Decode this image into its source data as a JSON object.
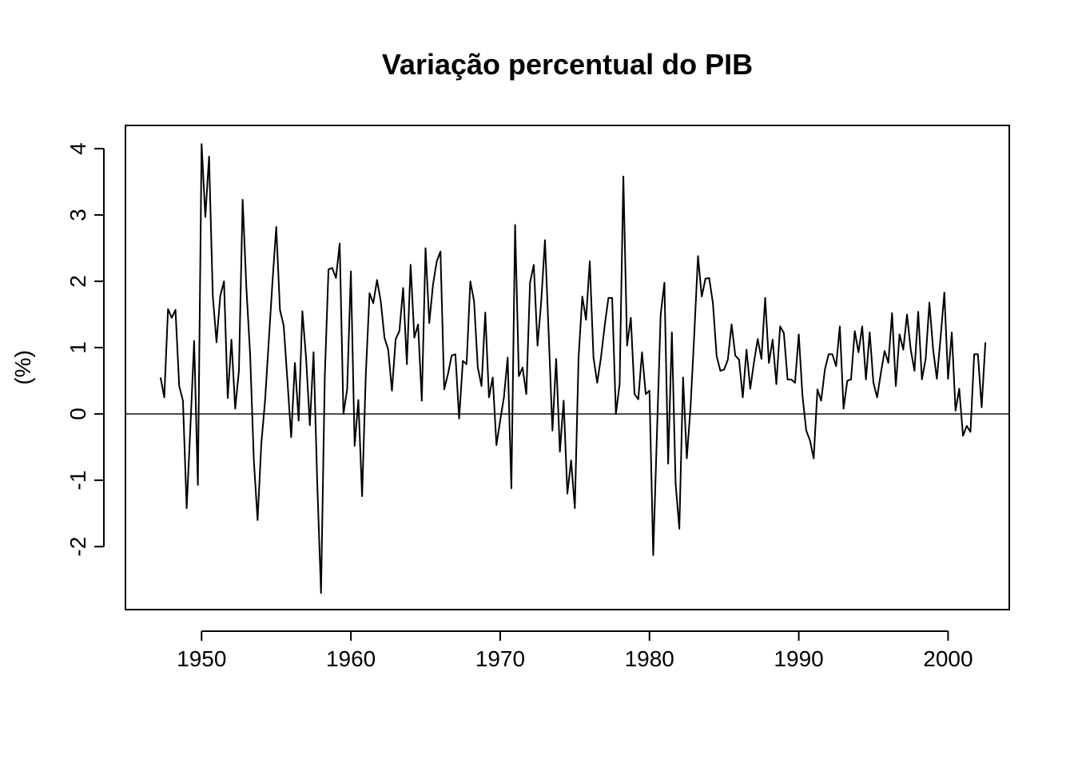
{
  "chart_data": {
    "type": "line",
    "title": "Variação percentual do PIB",
    "xlabel": "",
    "ylabel": "(%)",
    "xlim": [
      1944.9,
      2004.1
    ],
    "ylim": [
      -2.95,
      4.35
    ],
    "x_ticks": [
      1950,
      1960,
      1970,
      1980,
      1990,
      2000
    ],
    "x_tick_labels": [
      "1950",
      "1960",
      "1970",
      "1980",
      "1990",
      "2000"
    ],
    "y_ticks": [
      -2,
      -1,
      0,
      1,
      2,
      3,
      4
    ],
    "y_tick_labels": [
      "-2",
      "-1",
      "0",
      "1",
      "2",
      "3",
      "4"
    ],
    "reference_line": 0,
    "grid": false,
    "legend": "none",
    "series": [
      {
        "x_start": 1947.25,
        "x_step": 0.25,
        "values": [
          0.55,
          0.25,
          1.58,
          1.45,
          1.57,
          0.42,
          0.2,
          -1.42,
          -0.2,
          1.1,
          -1.07,
          4.07,
          2.97,
          3.88,
          1.78,
          1.08,
          1.78,
          2.0,
          0.24,
          1.12,
          0.08,
          0.65,
          3.23,
          1.9,
          0.9,
          -0.7,
          -1.6,
          -0.45,
          0.2,
          1.1,
          2.0,
          2.82,
          1.57,
          1.33,
          0.5,
          -0.35,
          0.77,
          -0.1,
          1.55,
          0.84,
          -0.17,
          0.93,
          -1.07,
          -2.7,
          0.55,
          2.18,
          2.2,
          2.05,
          2.57,
          0.0,
          0.37,
          2.15,
          -0.48,
          0.21,
          -1.24,
          0.6,
          1.82,
          1.67,
          2.02,
          1.7,
          1.15,
          0.97,
          0.35,
          1.13,
          1.25,
          1.9,
          0.75,
          2.25,
          1.15,
          1.35,
          0.2,
          2.5,
          1.37,
          1.95,
          2.3,
          2.45,
          0.37,
          0.6,
          0.88,
          0.9,
          -0.07,
          0.8,
          0.75,
          2.0,
          1.7,
          0.7,
          0.42,
          1.53,
          0.25,
          0.55,
          -0.47,
          -0.1,
          0.25,
          0.85,
          -1.12,
          2.85,
          0.57,
          0.7,
          0.3,
          1.98,
          2.25,
          1.03,
          1.7,
          2.62,
          1.2,
          -0.25,
          0.83,
          -0.57,
          0.2,
          -1.2,
          -0.7,
          -1.42,
          0.85,
          1.77,
          1.42,
          2.3,
          0.85,
          0.47,
          0.85,
          1.33,
          1.75,
          1.75,
          0.0,
          0.45,
          3.58,
          1.03,
          1.45,
          0.3,
          0.22,
          0.93,
          0.3,
          0.35,
          -2.13,
          -0.3,
          1.5,
          1.98,
          -0.75,
          1.23,
          -1.05,
          -1.73,
          0.55,
          -0.67,
          0.1,
          1.2,
          2.38,
          1.77,
          2.04,
          2.05,
          1.67,
          0.87,
          0.65,
          0.67,
          0.82,
          1.35,
          0.88,
          0.82,
          0.25,
          0.97,
          0.38,
          0.78,
          1.13,
          0.83,
          1.75,
          0.77,
          1.12,
          0.45,
          1.32,
          1.22,
          0.52,
          0.52,
          0.47,
          1.2,
          0.27,
          -0.25,
          -0.4,
          -0.67,
          0.37,
          0.2,
          0.67,
          0.9,
          0.9,
          0.72,
          1.32,
          0.08,
          0.5,
          0.52,
          1.25,
          0.93,
          1.32,
          0.52,
          1.23,
          0.47,
          0.25,
          0.62,
          0.95,
          0.77,
          1.52,
          0.42,
          1.2,
          0.97,
          1.5,
          0.97,
          0.65,
          1.54,
          0.52,
          0.83,
          1.68,
          0.97,
          0.53,
          1.15,
          1.83,
          0.53,
          1.23,
          0.05,
          0.38,
          -0.33,
          -0.18,
          -0.27,
          0.9,
          0.9,
          0.1,
          1.08
        ]
      }
    ]
  }
}
